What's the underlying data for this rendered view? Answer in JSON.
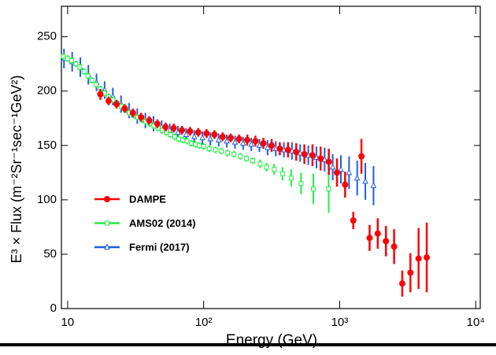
{
  "chart_data": {
    "type": "scatter",
    "x_label": "Energy (GeV)",
    "y_label": "E³ × Flux   (m⁻²Sr⁻¹sec⁻¹GeV²)",
    "xlog": true,
    "xlim": [
      9,
      10800
    ],
    "ylim": [
      0,
      278
    ],
    "xticks": [
      10,
      {
        "value": 100,
        "label": "10²"
      },
      {
        "value": 1000,
        "label": "10³"
      },
      {
        "value": 10000,
        "label": "10⁴"
      }
    ],
    "yticks": [
      0,
      50,
      100,
      150,
      200,
      250
    ],
    "legend": "left",
    "series": [
      {
        "name": "DAMPE",
        "color": "#ff0000",
        "marker": "circle",
        "filled": true,
        "x": [
          17.4,
          20.0,
          22.9,
          26.3,
          30.2,
          34.7,
          39.8,
          45.7,
          52.5,
          60.3,
          69.2,
          79.4,
          91.2,
          105,
          120,
          138,
          158,
          182,
          209,
          240,
          275,
          316,
          363,
          417,
          479,
          550,
          631,
          724,
          832,
          955,
          1096,
          1259,
          1445,
          1660,
          1905,
          2188,
          2512,
          2884,
          3311,
          3802,
          4365
        ],
        "values": [
          197,
          191,
          188,
          184,
          180,
          176,
          173,
          170,
          167,
          166,
          164,
          163,
          162,
          161,
          160,
          158,
          157,
          156,
          155,
          154,
          152,
          150,
          147,
          146,
          144,
          142,
          141,
          138,
          135,
          125,
          114,
          81,
          140,
          65,
          69,
          62,
          57,
          23,
          33,
          46,
          47
        ],
        "errors": [
          5,
          4,
          4,
          4,
          4,
          4,
          4,
          4,
          4,
          4,
          4,
          4,
          4,
          4,
          4,
          4,
          4,
          4,
          5,
          5,
          5,
          6,
          6,
          7,
          8,
          9,
          10,
          11,
          12,
          13,
          12,
          8,
          16,
          12,
          14,
          14,
          16,
          12,
          18,
          28,
          32
        ]
      },
      {
        "name": "AMS02 (2014)",
        "color": "#22ee44",
        "marker": "square",
        "filled": false,
        "x": [
          9.3,
          10,
          10.7,
          11.5,
          12.3,
          13.2,
          14.1,
          15.1,
          16.2,
          17.4,
          18.6,
          20,
          21.5,
          23,
          24.7,
          26.5,
          28.4,
          30.4,
          32.6,
          35,
          37.5,
          40.2,
          43.1,
          46.2,
          49.6,
          53.2,
          57,
          61.2,
          65.6,
          70.3,
          75.4,
          80.9,
          86.8,
          93,
          100,
          110,
          122,
          135,
          150,
          167,
          186,
          206,
          230,
          260,
          290,
          330,
          380,
          440,
          520,
          640,
          830
        ],
        "values": [
          232,
          230,
          228,
          225,
          222,
          218,
          214,
          210,
          206,
          202,
          198,
          195,
          192,
          189,
          186,
          183,
          180,
          178,
          176,
          174,
          172,
          170,
          168,
          166,
          164,
          162,
          160,
          158,
          156,
          155,
          154,
          152,
          151,
          150,
          149,
          147,
          146,
          145,
          143,
          142,
          140,
          138,
          136,
          133,
          130,
          128,
          124,
          120,
          115,
          110,
          110
        ],
        "errors": [
          3,
          3,
          3,
          3,
          3,
          3,
          3,
          3,
          3,
          3,
          3,
          3,
          3,
          3,
          3,
          3,
          3,
          3,
          3,
          3,
          3,
          3,
          3,
          3,
          3,
          3,
          3,
          3,
          3,
          3,
          3,
          3,
          3,
          3,
          3,
          3,
          3,
          3,
          3,
          3,
          3,
          3,
          3,
          4,
          4,
          5,
          6,
          8,
          10,
          14,
          22
        ]
      },
      {
        "name": "Fermi (2017)",
        "color": "#1f5fe0",
        "marker": "triangle",
        "filled": false,
        "x": [
          9.4,
          10.8,
          12.4,
          14.2,
          16.3,
          18.7,
          21.5,
          24.7,
          28.3,
          32.5,
          37.3,
          42.8,
          49.1,
          56.4,
          64.7,
          74.3,
          85.3,
          97.9,
          112,
          129,
          148,
          170,
          195,
          224,
          257,
          295,
          339,
          389,
          446,
          512,
          588,
          675,
          775,
          889,
          1021,
          1172,
          1345,
          1544,
          1773
        ],
        "values": [
          230,
          227,
          222,
          215,
          208,
          201,
          195,
          188,
          182,
          177,
          173,
          170,
          167,
          164,
          162,
          160,
          158,
          157,
          156,
          155,
          154,
          153,
          152,
          151,
          150,
          148,
          147,
          146,
          145,
          143,
          141,
          139,
          137,
          130,
          128,
          125,
          120,
          117,
          113
        ],
        "errors": [
          9,
          9,
          9,
          9,
          8,
          8,
          8,
          8,
          7,
          7,
          7,
          7,
          6,
          6,
          6,
          6,
          6,
          6,
          6,
          6,
          6,
          6,
          6,
          6,
          6,
          7,
          7,
          7,
          8,
          8,
          9,
          10,
          11,
          12,
          13,
          15,
          16,
          17,
          18
        ]
      }
    ]
  }
}
